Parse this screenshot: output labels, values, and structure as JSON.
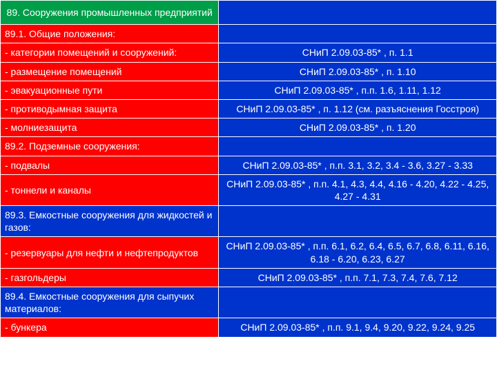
{
  "header": {
    "title": "89. Сооружения промышленных предприятий"
  },
  "rows": [
    {
      "l": "89.1. Общие положения:",
      "r": "",
      "lc": "red",
      "rc": "blue",
      "ra": "center"
    },
    {
      "l": "- категории помещений и сооружений:",
      "r": "СНиП 2.09.03-85* , п. 1.1",
      "lc": "red",
      "rc": "blue",
      "ra": "center"
    },
    {
      "l": "- размещение помещений",
      "r": "СНиП 2.09.03-85* , п. 1.10",
      "lc": "red",
      "rc": "blue",
      "ra": "center"
    },
    {
      "l": "- эвакуационные пути",
      "r": "СНиП 2.09.03-85* , п.п. 1.6, 1.11, 1.12",
      "lc": "red",
      "rc": "blue",
      "ra": "center"
    },
    {
      "l": "- противодымная защита",
      "r": "СНиП 2.09.03-85* , п. 1.12 (см. разъяснения Госстроя)",
      "lc": "red",
      "rc": "blue",
      "ra": "center"
    },
    {
      "l": "- молниезащита",
      "r": "СНиП 2.09.03-85* , п. 1.20",
      "lc": "red",
      "rc": "blue",
      "ra": "center"
    },
    {
      "l": "89.2. Подземные сооружения:",
      "r": "",
      "lc": "red",
      "rc": "blue",
      "ra": "center"
    },
    {
      "l": "- подвалы",
      "r": "СНиП 2.09.03-85* , п.п. 3.1, 3.2, 3.4 - 3.6, 3.27 - 3.33",
      "lc": "red",
      "rc": "blue",
      "ra": "center"
    },
    {
      "l": "- тоннели и каналы",
      "r": "СНиП 2.09.03-85* , п.п. 4.1, 4.3, 4.4, 4.16 - 4.20, 4.22 - 4.25, 4.27 - 4.31",
      "lc": "red",
      "rc": "blue",
      "ra": "center"
    },
    {
      "l": "89.3. Емкостные сооружения для жидкостей и газов:",
      "r": "",
      "lc": "blue",
      "rc": "blue",
      "ra": "center"
    },
    {
      "l": "- резервуары для нефти и нефтепродуктов",
      "r": "СНиП 2.09.03-85* , п.п. 6.1, 6.2, 6.4, 6.5, 6.7, 6.8, 6.11, 6.16, 6.18 - 6.20, 6.23, 6.27",
      "lc": "red",
      "rc": "blue",
      "ra": "center"
    },
    {
      "l": "- газгольдеры",
      "r": "СНиП 2.09.03-85* , п.п. 7.1, 7.3, 7.4, 7.6, 7.12",
      "lc": "red",
      "rc": "blue",
      "ra": "center"
    },
    {
      "l": "89.4. Емкостные сооружения для сыпучих материалов:",
      "r": "",
      "lc": "blue",
      "rc": "blue",
      "ra": "center"
    },
    {
      "l": "- бункера",
      "r": "СНиП 2.09.03-85* , п.п. 9.1, 9.4, 9.20, 9.22, 9.24, 9.25",
      "lc": "red",
      "rc": "blue",
      "ra": "center"
    }
  ]
}
